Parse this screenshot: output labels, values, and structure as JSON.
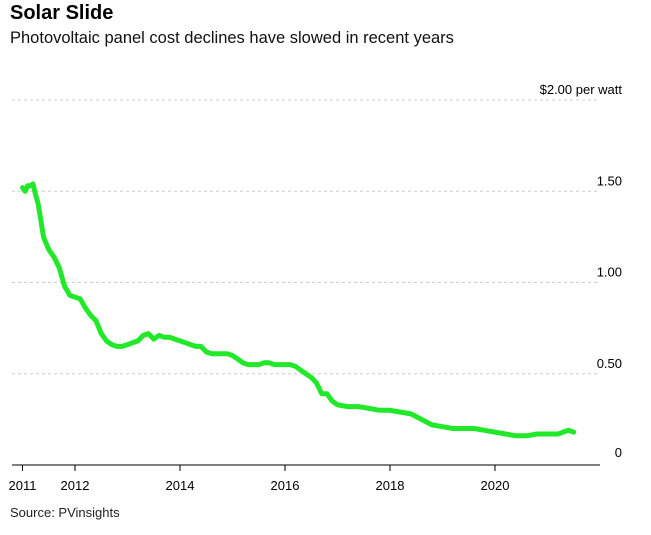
{
  "title": "Solar Slide",
  "subtitle": "Photovoltaic panel cost declines have slowed in recent years",
  "source": "Source: PVinsights",
  "chart_data": {
    "type": "line",
    "title": "Solar Slide",
    "subtitle": "Photovoltaic panel cost declines have slowed in recent years",
    "xlabel": "",
    "ylabel": "",
    "xlim": [
      2010.8,
      2022.0
    ],
    "ylim": [
      0,
      2.0
    ],
    "x_ticks": [
      2011,
      2012,
      2014,
      2016,
      2018,
      2020
    ],
    "x_tick_labels": [
      "2011",
      "2012",
      "2014",
      "2016",
      "2018",
      "2020"
    ],
    "y_ticks": [
      0,
      0.5,
      1.0,
      1.5,
      2.0
    ],
    "y_tick_labels": [
      "0",
      "0.50",
      "1.00",
      "1.50",
      "$2.00 per watt"
    ],
    "grid": "horizontal dashed",
    "legend": "none",
    "line_color": "#22e82a",
    "grid_color": "#cccccc",
    "series": [
      {
        "x": [
          2011.0,
          2011.05,
          2011.1,
          2011.15,
          2011.2,
          2011.25,
          2011.3,
          2011.4,
          2011.5,
          2011.6,
          2011.7,
          2011.8,
          2011.9,
          2012.0,
          2012.1,
          2012.2,
          2012.3,
          2012.4,
          2012.5,
          2012.6,
          2012.7,
          2012.8,
          2012.9,
          2013.0,
          2013.1,
          2013.2,
          2013.3,
          2013.4,
          2013.5,
          2013.6,
          2013.7,
          2013.8,
          2013.9,
          2014.0,
          2014.1,
          2014.2,
          2014.3,
          2014.4,
          2014.5,
          2014.6,
          2014.7,
          2014.8,
          2014.9,
          2015.0,
          2015.1,
          2015.2,
          2015.3,
          2015.4,
          2015.5,
          2015.6,
          2015.7,
          2015.8,
          2015.9,
          2016.0,
          2016.1,
          2016.2,
          2016.3,
          2016.4,
          2016.5,
          2016.6,
          2016.7,
          2016.8,
          2016.9,
          2017.0,
          2017.2,
          2017.4,
          2017.6,
          2017.8,
          2018.0,
          2018.2,
          2018.4,
          2018.6,
          2018.8,
          2019.0,
          2019.2,
          2019.4,
          2019.6,
          2019.8,
          2020.0,
          2020.2,
          2020.4,
          2020.6,
          2020.8,
          2021.0,
          2021.1,
          2021.2,
          2021.3,
          2021.4,
          2021.5
        ],
        "values": [
          1.52,
          1.5,
          1.53,
          1.53,
          1.54,
          1.48,
          1.43,
          1.25,
          1.18,
          1.14,
          1.08,
          0.98,
          0.93,
          0.92,
          0.91,
          0.86,
          0.82,
          0.79,
          0.72,
          0.68,
          0.66,
          0.65,
          0.65,
          0.66,
          0.67,
          0.68,
          0.71,
          0.72,
          0.69,
          0.71,
          0.7,
          0.7,
          0.69,
          0.68,
          0.67,
          0.66,
          0.65,
          0.65,
          0.62,
          0.61,
          0.61,
          0.61,
          0.61,
          0.6,
          0.58,
          0.56,
          0.55,
          0.55,
          0.55,
          0.56,
          0.56,
          0.55,
          0.55,
          0.55,
          0.55,
          0.54,
          0.52,
          0.5,
          0.48,
          0.45,
          0.39,
          0.39,
          0.35,
          0.33,
          0.32,
          0.32,
          0.31,
          0.3,
          0.3,
          0.29,
          0.28,
          0.25,
          0.22,
          0.21,
          0.2,
          0.2,
          0.2,
          0.19,
          0.18,
          0.17,
          0.16,
          0.16,
          0.17,
          0.17,
          0.17,
          0.17,
          0.18,
          0.19,
          0.18
        ]
      }
    ]
  }
}
